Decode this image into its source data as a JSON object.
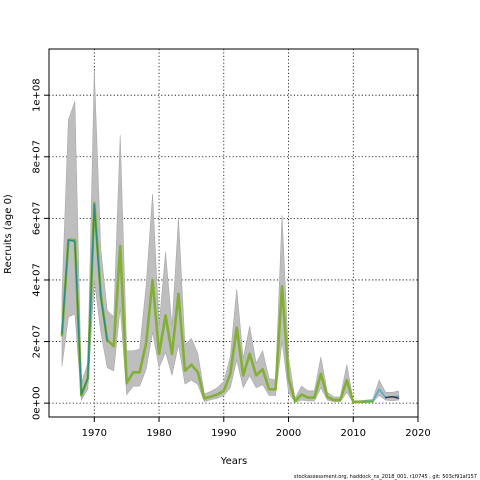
{
  "chart_data": {
    "type": "line",
    "xlabel": "Years",
    "ylabel": "Recruits (age 0)",
    "xlim": [
      1963,
      2020
    ],
    "ylim": [
      -4500000,
      115000000
    ],
    "x_ticks": [
      1970,
      1980,
      1990,
      2000,
      2010,
      2020
    ],
    "y_ticks": [
      0,
      20000000,
      40000000,
      60000000,
      80000000,
      100000000
    ],
    "y_tick_labels": [
      "0e+00",
      "2e+07",
      "4e+07",
      "6e+07",
      "8e+07",
      "1e+08"
    ],
    "grid": true,
    "footer": "stockassessment.org, haddock_ns_2018_001, r10745 , git: 503cf91af157",
    "colors": {
      "band": "#bebebe",
      "band_edge": "#a8a8a8",
      "main": "#82b034",
      "early": "#2a8f7a",
      "recent_blue": "#4aa8d8",
      "recent_dark": "#3a2e44"
    },
    "band": {
      "x": [
        1965,
        1966,
        1967,
        1968,
        1969,
        1970,
        1971,
        1972,
        1973,
        1974,
        1975,
        1976,
        1977,
        1978,
        1979,
        1980,
        1981,
        1982,
        1983,
        1984,
        1985,
        1986,
        1987,
        1988,
        1989,
        1990,
        1991,
        1992,
        1993,
        1994,
        1995,
        1996,
        1997,
        1998,
        1999,
        2000,
        2001,
        2002,
        2003,
        2004,
        2005,
        2006,
        2007,
        2008,
        2009,
        2010,
        2011,
        2012,
        2013,
        2014,
        2015,
        2016,
        2017
      ],
      "lower": [
        12000000,
        28000000,
        29000000,
        1000000,
        4500000,
        40000000,
        23000000,
        11500000,
        10500000,
        31000000,
        2800000,
        5500000,
        5500000,
        11000000,
        23000000,
        11500000,
        16500000,
        9000000,
        19000000,
        6200000,
        7500000,
        6000000,
        500000,
        1100000,
        1500000,
        2500000,
        5000000,
        14000000,
        5000000,
        9000000,
        5000000,
        6000000,
        2500000,
        2500000,
        20000000,
        3500000,
        200000,
        1000000,
        700000,
        700000,
        5000000,
        1000000,
        500000,
        500000,
        3500000,
        200000,
        200000,
        300000,
        300000,
        2500000,
        1000000,
        800000,
        1000000
      ],
      "upper": [
        35000000,
        92000000,
        98000000,
        6500000,
        13000000,
        108000000,
        50000000,
        30000000,
        28000000,
        87000000,
        17000000,
        17000000,
        17500000,
        38000000,
        68000000,
        25000000,
        49000000,
        25000000,
        60000000,
        19000000,
        21000000,
        16000000,
        3000000,
        3800000,
        5000000,
        7000000,
        15000000,
        37000000,
        14500000,
        25000000,
        13000000,
        17000000,
        8000000,
        7500000,
        61000000,
        15000000,
        1500000,
        5500000,
        4000000,
        4000000,
        15000000,
        3500000,
        2000000,
        2000000,
        12500000,
        800000,
        800000,
        1000000,
        1200000,
        7500000,
        3500000,
        3500000,
        4000000
      ]
    },
    "series": [
      {
        "color": "main",
        "x": [
          1965,
          1966,
          1967,
          1968,
          1969,
          1970,
          1971,
          1972,
          1973,
          1974,
          1975,
          1976,
          1977,
          1978,
          1979,
          1980,
          1981,
          1982,
          1983,
          1984,
          1985,
          1986,
          1987,
          1988,
          1989,
          1990,
          1991,
          1992,
          1993,
          1994,
          1995,
          1996,
          1997,
          1998,
          1999,
          2000,
          2001,
          2002,
          2003,
          2004,
          2005,
          2006,
          2007,
          2008,
          2009,
          2010,
          2011,
          2012,
          2013
        ],
        "y": [
          22000000,
          53000000,
          53000000,
          2500000,
          8000000,
          65000000,
          35000000,
          20500000,
          18500000,
          51000000,
          6500000,
          10000000,
          10000000,
          19500000,
          40000000,
          16000000,
          28500000,
          16000000,
          35500000,
          10500000,
          12500000,
          10000000,
          1500000,
          2100000,
          2800000,
          4000000,
          9500000,
          24500000,
          9000000,
          16000000,
          9000000,
          11000000,
          4500000,
          4500000,
          38000000,
          8000000,
          600000,
          2800000,
          1800000,
          1800000,
          9500000,
          2000000,
          1000000,
          1000000,
          7500000,
          400000,
          400000,
          500000,
          600000
        ]
      },
      {
        "color": "early",
        "x": [
          1965,
          1966,
          1967,
          1968,
          1969,
          1970,
          1971,
          1972
        ],
        "y": [
          22500000,
          53000000,
          52500000,
          2800000,
          8200000,
          64500000,
          34500000,
          20000000
        ]
      },
      {
        "color": "recent_blue",
        "x": [
          2012,
          2013,
          2014,
          2015,
          2016,
          2017
        ],
        "y": [
          500000,
          600000,
          4500000,
          1800000,
          2000000,
          2200000
        ]
      },
      {
        "color": "recent_dark",
        "x": [
          2015,
          2016,
          2017
        ],
        "y": [
          1800000,
          2100000,
          1600000
        ]
      }
    ]
  }
}
